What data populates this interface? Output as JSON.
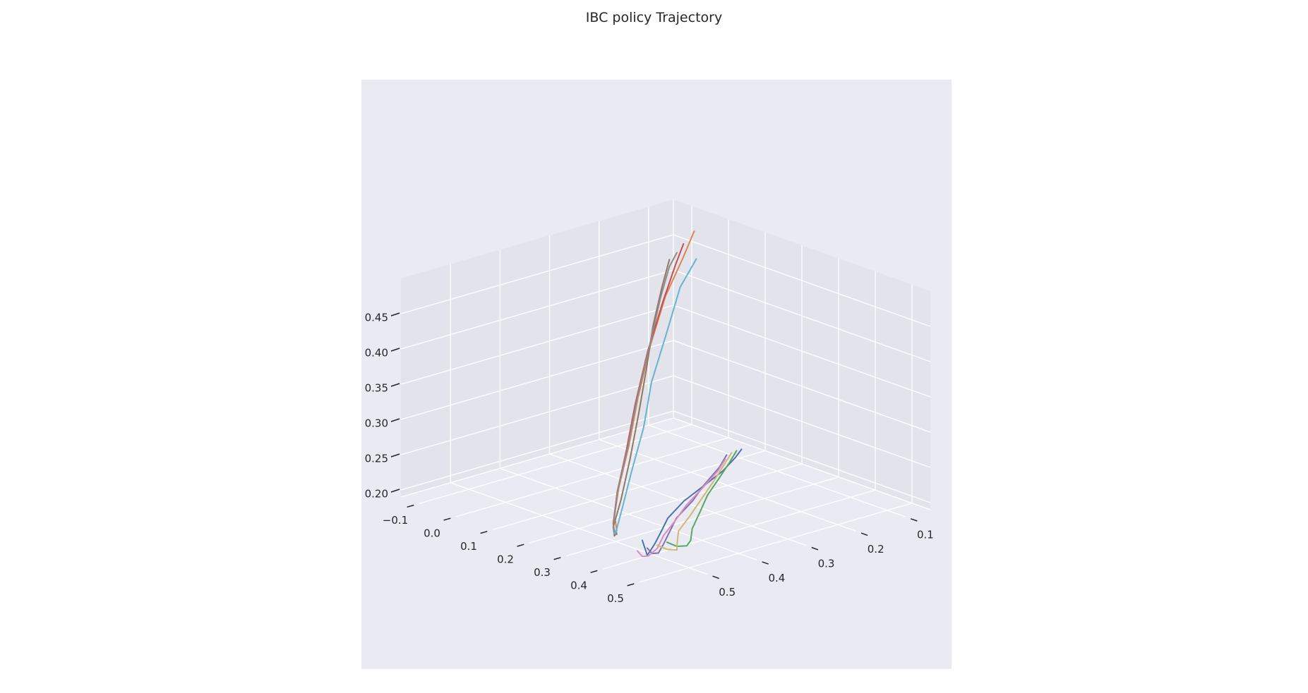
{
  "chart_data": {
    "type": "line",
    "projection": "3d",
    "title": "IBC policy Trajectory",
    "xlabel": "",
    "ylabel": "",
    "zlabel": "",
    "grid": true,
    "colors": {
      "pane": "#eaeaf2",
      "pane_back": "#e3e3eb",
      "grid": "#ffffff",
      "text": "#262626"
    },
    "axes": {
      "x": {
        "range": [
          -0.15,
          0.55
        ],
        "ticks": [
          -0.1,
          0.0,
          0.1,
          0.2,
          0.3,
          0.4,
          0.5
        ],
        "tick_labels": [
          "−0.1",
          "0.0",
          "0.1",
          "0.2",
          "0.3",
          "0.4",
          "0.5"
        ]
      },
      "y": {
        "range": [
          0.05,
          0.6
        ],
        "ticks": [
          0.1,
          0.2,
          0.3,
          0.4,
          0.5
        ],
        "tick_labels": [
          "0.1",
          "0.2",
          "0.3",
          "0.4",
          "0.5"
        ]
      },
      "z": {
        "range": [
          0.19,
          0.5
        ],
        "ticks": [
          0.2,
          0.25,
          0.3,
          0.35,
          0.4,
          0.45
        ],
        "tick_labels": [
          "0.20",
          "0.25",
          "0.30",
          "0.35",
          "0.40",
          "0.45"
        ]
      }
    },
    "series": [
      {
        "color": "#4c72b0",
        "points": [
          [
            0.44,
            0.55,
            0.228
          ],
          [
            0.44,
            0.54,
            0.205
          ],
          [
            0.42,
            0.52,
            0.202
          ],
          [
            0.38,
            0.48,
            0.198
          ],
          [
            0.33,
            0.43,
            0.196
          ],
          [
            0.28,
            0.38,
            0.195
          ],
          [
            0.23,
            0.31,
            0.196
          ],
          [
            0.19,
            0.24,
            0.196
          ],
          [
            0.16,
            0.18,
            0.199
          ],
          [
            0.14,
            0.14,
            0.206
          ],
          [
            0.13,
            0.12,
            0.212
          ]
        ]
      },
      {
        "color": "#dd8452",
        "points": [
          [
            -0.08,
            0.06,
            0.47
          ],
          [
            -0.07,
            0.09,
            0.44
          ],
          [
            -0.05,
            0.14,
            0.4
          ],
          [
            -0.01,
            0.2,
            0.35
          ],
          [
            0.05,
            0.27,
            0.3
          ],
          [
            0.12,
            0.34,
            0.26
          ],
          [
            0.2,
            0.42,
            0.23
          ],
          [
            0.28,
            0.49,
            0.21
          ],
          [
            0.31,
            0.51,
            0.205
          ],
          [
            0.33,
            0.52,
            0.215
          ],
          [
            0.32,
            0.515,
            0.225
          ]
        ]
      },
      {
        "color": "#55a868",
        "points": [
          [
            0.44,
            0.5,
            0.215
          ],
          [
            0.44,
            0.48,
            0.205
          ],
          [
            0.44,
            0.46,
            0.202
          ],
          [
            0.41,
            0.43,
            0.198
          ],
          [
            0.36,
            0.39,
            0.197
          ],
          [
            0.3,
            0.33,
            0.197
          ],
          [
            0.24,
            0.27,
            0.198
          ],
          [
            0.19,
            0.21,
            0.2
          ],
          [
            0.15,
            0.16,
            0.204
          ],
          [
            0.13,
            0.13,
            0.212
          ]
        ]
      },
      {
        "color": "#c44e52",
        "points": [
          [
            -0.055,
            0.1,
            0.465
          ],
          [
            -0.05,
            0.12,
            0.44
          ],
          [
            -0.03,
            0.16,
            0.4
          ],
          [
            0.01,
            0.22,
            0.35
          ],
          [
            0.07,
            0.29,
            0.3
          ],
          [
            0.14,
            0.36,
            0.26
          ],
          [
            0.21,
            0.43,
            0.23
          ],
          [
            0.28,
            0.49,
            0.21
          ],
          [
            0.31,
            0.51,
            0.205
          ],
          [
            0.33,
            0.52,
            0.21
          ]
        ]
      },
      {
        "color": "#8172b3",
        "points": [
          [
            0.44,
            0.54,
            0.215
          ],
          [
            0.44,
            0.53,
            0.205
          ],
          [
            0.43,
            0.51,
            0.2
          ],
          [
            0.39,
            0.47,
            0.197
          ],
          [
            0.34,
            0.42,
            0.196
          ],
          [
            0.29,
            0.37,
            0.195
          ],
          [
            0.24,
            0.3,
            0.196
          ],
          [
            0.19,
            0.24,
            0.197
          ],
          [
            0.15,
            0.18,
            0.202
          ],
          [
            0.13,
            0.15,
            0.21
          ]
        ]
      },
      {
        "color": "#937860",
        "points": [
          [
            -0.08,
            0.11,
            0.44
          ],
          [
            -0.06,
            0.14,
            0.41
          ],
          [
            -0.03,
            0.18,
            0.37
          ],
          [
            0.02,
            0.23,
            0.33
          ],
          [
            0.08,
            0.29,
            0.29
          ],
          [
            0.15,
            0.36,
            0.25
          ],
          [
            0.22,
            0.43,
            0.22
          ],
          [
            0.28,
            0.49,
            0.205
          ],
          [
            0.31,
            0.51,
            0.202
          ],
          [
            0.33,
            0.52,
            0.212
          ]
        ]
      },
      {
        "color": "#da8bc3",
        "points": [
          [
            0.44,
            0.56,
            0.215
          ],
          [
            0.44,
            0.55,
            0.205
          ],
          [
            0.43,
            0.53,
            0.2
          ],
          [
            0.4,
            0.49,
            0.197
          ],
          [
            0.35,
            0.44,
            0.196
          ],
          [
            0.3,
            0.38,
            0.195
          ],
          [
            0.25,
            0.32,
            0.196
          ],
          [
            0.2,
            0.25,
            0.197
          ],
          [
            0.16,
            0.19,
            0.201
          ],
          [
            0.14,
            0.16,
            0.208
          ]
        ]
      },
      {
        "color": "#8c8c8c",
        "points": [
          [
            -0.1,
            0.08,
            0.44
          ],
          [
            -0.08,
            0.11,
            0.43
          ],
          [
            -0.05,
            0.15,
            0.4
          ],
          [
            0.0,
            0.21,
            0.35
          ],
          [
            0.06,
            0.28,
            0.3
          ],
          [
            0.13,
            0.35,
            0.26
          ],
          [
            0.21,
            0.43,
            0.23
          ],
          [
            0.28,
            0.49,
            0.205
          ],
          [
            0.31,
            0.51,
            0.205
          ],
          [
            0.33,
            0.52,
            0.21
          ]
        ]
      },
      {
        "color": "#ccb974",
        "points": [
          [
            0.44,
            0.52,
            0.215
          ],
          [
            0.44,
            0.5,
            0.205
          ],
          [
            0.44,
            0.48,
            0.2
          ],
          [
            0.4,
            0.45,
            0.197
          ],
          [
            0.35,
            0.41,
            0.196
          ],
          [
            0.3,
            0.35,
            0.196
          ],
          [
            0.24,
            0.28,
            0.197
          ],
          [
            0.19,
            0.22,
            0.199
          ],
          [
            0.15,
            0.17,
            0.204
          ],
          [
            0.13,
            0.14,
            0.211
          ]
        ]
      },
      {
        "color": "#64b5cd",
        "points": [
          [
            -0.02,
            0.1,
            0.45
          ],
          [
            -0.01,
            0.14,
            0.42
          ],
          [
            0.02,
            0.19,
            0.37
          ],
          [
            0.06,
            0.25,
            0.32
          ],
          [
            0.12,
            0.31,
            0.28
          ],
          [
            0.18,
            0.38,
            0.24
          ],
          [
            0.24,
            0.44,
            0.22
          ],
          [
            0.29,
            0.49,
            0.205
          ],
          [
            0.31,
            0.51,
            0.205
          ],
          [
            0.33,
            0.52,
            0.215
          ]
        ]
      }
    ]
  }
}
